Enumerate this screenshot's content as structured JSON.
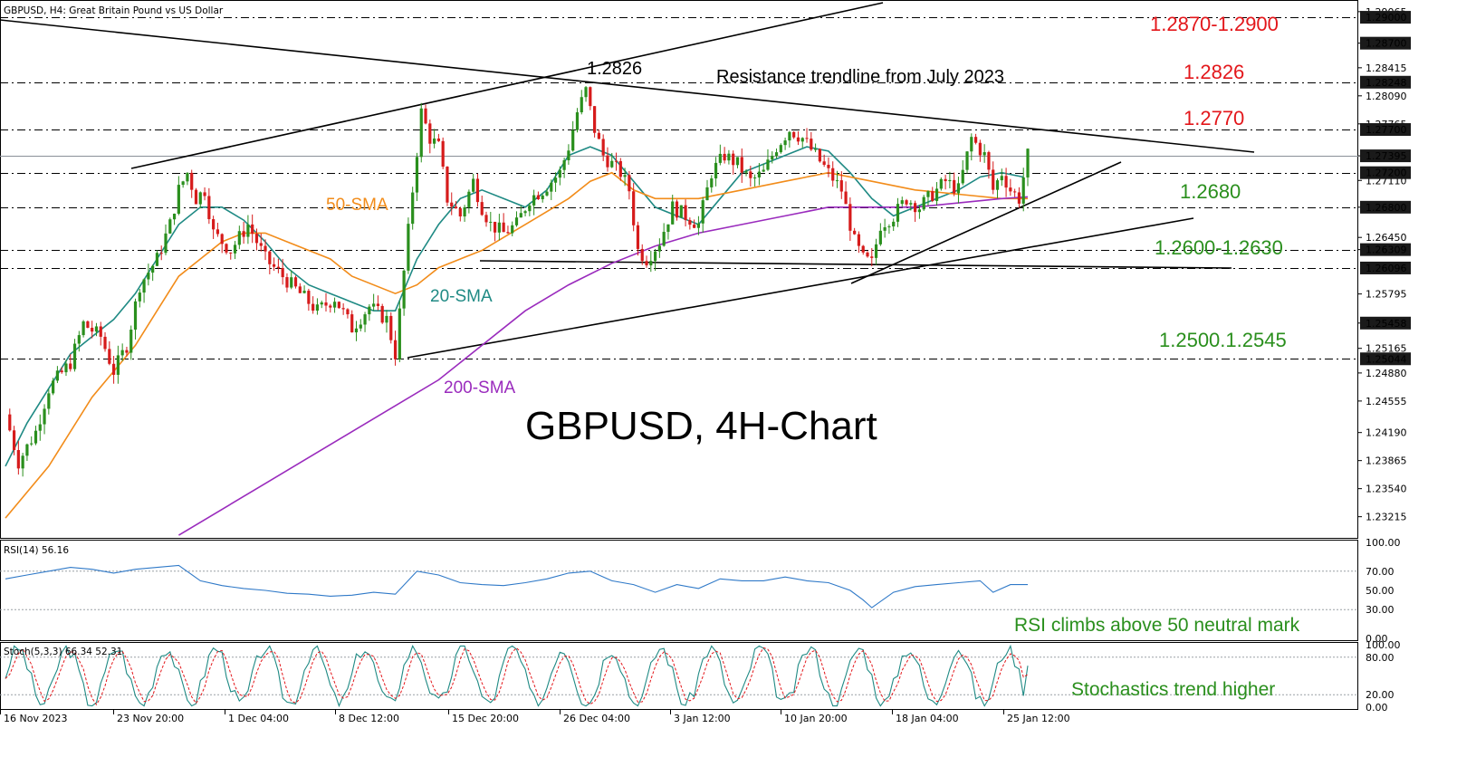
{
  "chart_data": {
    "type": "candlestick",
    "title": "GBPUSD, 4H-Chart",
    "header": "GBPUSD, H4:  Great Britain Pound vs US Dollar",
    "ylim": [
      1.2297,
      1.292
    ],
    "price_ticks": [
      "1.29065",
      "1.28700",
      "1.28415",
      "1.28090",
      "1.27765",
      "1.27395",
      "1.27110",
      "1.26800",
      "1.26450",
      "1.26309",
      "1.25795",
      "1.25458",
      "1.25165",
      "1.24880",
      "1.24555",
      "1.24190",
      "1.23865",
      "1.23540",
      "1.23215"
    ],
    "marked_levels": [
      {
        "value": 1.29,
        "label": "1.29000",
        "style": "dash",
        "highlight": true
      },
      {
        "value": 1.287,
        "label": "1.28700",
        "style": "none",
        "highlight": true
      },
      {
        "value": 1.28248,
        "label": "1.28248",
        "style": "dash",
        "highlight": true
      },
      {
        "value": 1.277,
        "label": "1.27700",
        "style": "dash",
        "highlight": true
      },
      {
        "value": 1.27395,
        "label": "1.27395",
        "style": "current",
        "highlight": true
      },
      {
        "value": 1.272,
        "label": "1.27200",
        "style": "dash",
        "highlight": true
      },
      {
        "value": 1.268,
        "label": "1.26800",
        "style": "dash",
        "highlight": true
      },
      {
        "value": 1.26309,
        "label": "1.26309",
        "style": "dash",
        "highlight": true
      },
      {
        "value": 1.26096,
        "label": "1.26096",
        "style": "dash",
        "highlight": true
      },
      {
        "value": 1.25458,
        "label": "1.25458",
        "style": "none",
        "highlight": true
      },
      {
        "value": 1.25044,
        "label": "1.25044",
        "style": "dash",
        "highlight": true
      }
    ],
    "x_ticks": [
      "16 Nov 2023",
      "23 Nov 20:00",
      "1 Dec 04:00",
      "8 Dec 12:00",
      "15 Dec 20:00",
      "26 Dec 04:00",
      "3 Jan 12:00",
      "10 Jan 20:00",
      "18 Jan 04:00",
      "25 Jan 12:00"
    ],
    "price_path": [
      [
        0,
        1.244
      ],
      [
        3,
        1.2385
      ],
      [
        7,
        1.242
      ],
      [
        10,
        1.247
      ],
      [
        15,
        1.25
      ],
      [
        18,
        1.2545
      ],
      [
        22,
        1.253
      ],
      [
        25,
        1.249
      ],
      [
        28,
        1.252
      ],
      [
        31,
        1.259
      ],
      [
        35,
        1.262
      ],
      [
        38,
        1.266
      ],
      [
        40,
        1.27
      ],
      [
        42,
        1.272
      ],
      [
        44,
        1.269
      ],
      [
        46,
        1.27
      ],
      [
        48,
        1.265
      ],
      [
        52,
        1.263
      ],
      [
        56,
        1.266
      ],
      [
        60,
        1.262
      ],
      [
        64,
        1.26
      ],
      [
        68,
        1.258
      ],
      [
        72,
        1.256
      ],
      [
        76,
        1.2575
      ],
      [
        80,
        1.254
      ],
      [
        84,
        1.2565
      ],
      [
        88,
        1.255
      ],
      [
        90,
        1.251
      ],
      [
        92,
        1.2605
      ],
      [
        94,
        1.27
      ],
      [
        96,
        1.279
      ],
      [
        98,
        1.276
      ],
      [
        100,
        1.275
      ],
      [
        102,
        1.269
      ],
      [
        105,
        1.267
      ],
      [
        108,
        1.271
      ],
      [
        110,
        1.268
      ],
      [
        112,
        1.266
      ],
      [
        115,
        1.265
      ],
      [
        118,
        1.266
      ],
      [
        121,
        1.269
      ],
      [
        124,
        1.27
      ],
      [
        128,
        1.272
      ],
      [
        130,
        1.275
      ],
      [
        132,
        1.279
      ],
      [
        134,
        1.2815
      ],
      [
        136,
        1.277
      ],
      [
        138,
        1.274
      ],
      [
        140,
        1.273
      ],
      [
        142,
        1.272
      ],
      [
        144,
        1.27
      ],
      [
        146,
        1.263
      ],
      [
        148,
        1.262
      ],
      [
        151,
        1.264
      ],
      [
        154,
        1.268
      ],
      [
        157,
        1.267
      ],
      [
        160,
        1.266
      ],
      [
        163,
        1.272
      ],
      [
        166,
        1.274
      ],
      [
        169,
        1.273
      ],
      [
        172,
        1.271
      ],
      [
        175,
        1.272
      ],
      [
        178,
        1.275
      ],
      [
        181,
        1.277
      ],
      [
        184,
        1.276
      ],
      [
        187,
        1.274
      ],
      [
        190,
        1.272
      ],
      [
        193,
        1.27
      ],
      [
        196,
        1.264
      ],
      [
        198,
        1.262
      ],
      [
        200,
        1.2615
      ],
      [
        202,
        1.266
      ],
      [
        205,
        1.267
      ],
      [
        208,
        1.269
      ],
      [
        211,
        1.268
      ],
      [
        214,
        1.2695
      ],
      [
        217,
        1.271
      ],
      [
        220,
        1.27
      ],
      [
        223,
        1.276
      ],
      [
        226,
        1.274
      ],
      [
        228,
        1.27
      ],
      [
        230,
        1.272
      ],
      [
        232,
        1.27
      ],
      [
        234,
        1.269
      ],
      [
        236,
        1.274
      ]
    ],
    "series": [
      {
        "name": "20-SMA",
        "color": "#1f8a84",
        "values": [
          [
            0,
            1.238
          ],
          [
            5,
            1.243
          ],
          [
            10,
            1.247
          ],
          [
            15,
            1.251
          ],
          [
            20,
            1.253
          ],
          [
            25,
            1.255
          ],
          [
            30,
            1.258
          ],
          [
            35,
            1.262
          ],
          [
            40,
            1.266
          ],
          [
            45,
            1.268
          ],
          [
            50,
            1.268
          ],
          [
            55,
            1.2665
          ],
          [
            60,
            1.264
          ],
          [
            65,
            1.261
          ],
          [
            70,
            1.259
          ],
          [
            75,
            1.258
          ],
          [
            80,
            1.257
          ],
          [
            85,
            1.256
          ],
          [
            90,
            1.256
          ],
          [
            95,
            1.262
          ],
          [
            100,
            1.266
          ],
          [
            105,
            1.269
          ],
          [
            110,
            1.27
          ],
          [
            115,
            1.269
          ],
          [
            120,
            1.268
          ],
          [
            125,
            1.27
          ],
          [
            130,
            1.274
          ],
          [
            135,
            1.275
          ],
          [
            140,
            1.274
          ],
          [
            145,
            1.271
          ],
          [
            150,
            1.268
          ],
          [
            155,
            1.267
          ],
          [
            160,
            1.266
          ],
          [
            165,
            1.269
          ],
          [
            170,
            1.272
          ],
          [
            175,
            1.273
          ],
          [
            180,
            1.274
          ],
          [
            185,
            1.275
          ],
          [
            190,
            1.2745
          ],
          [
            195,
            1.272
          ],
          [
            200,
            1.269
          ],
          [
            205,
            1.267
          ],
          [
            210,
            1.268
          ],
          [
            215,
            1.269
          ],
          [
            220,
            1.27
          ],
          [
            225,
            1.2715
          ],
          [
            230,
            1.272
          ],
          [
            235,
            1.2715
          ]
        ]
      },
      {
        "name": "50-SMA",
        "color": "#f28c1a",
        "values": [
          [
            0,
            1.232
          ],
          [
            10,
            1.238
          ],
          [
            20,
            1.246
          ],
          [
            30,
            1.252
          ],
          [
            35,
            1.256
          ],
          [
            40,
            1.26
          ],
          [
            45,
            1.262
          ],
          [
            50,
            1.264
          ],
          [
            55,
            1.265
          ],
          [
            60,
            1.265
          ],
          [
            65,
            1.264
          ],
          [
            70,
            1.263
          ],
          [
            75,
            1.262
          ],
          [
            80,
            1.26
          ],
          [
            90,
            1.258
          ],
          [
            95,
            1.259
          ],
          [
            100,
            1.261
          ],
          [
            110,
            1.263
          ],
          [
            120,
            1.266
          ],
          [
            130,
            1.269
          ],
          [
            135,
            1.271
          ],
          [
            140,
            1.272
          ],
          [
            145,
            1.27
          ],
          [
            150,
            1.269
          ],
          [
            160,
            1.269
          ],
          [
            170,
            1.27
          ],
          [
            180,
            1.271
          ],
          [
            190,
            1.272
          ],
          [
            200,
            1.271
          ],
          [
            210,
            1.27
          ],
          [
            220,
            1.2695
          ],
          [
            230,
            1.269
          ],
          [
            236,
            1.269
          ]
        ]
      },
      {
        "name": "200-SMA",
        "color": "#9a2bbd",
        "values": [
          [
            40,
            1.23
          ],
          [
            60,
            1.236
          ],
          [
            80,
            1.242
          ],
          [
            90,
            1.245
          ],
          [
            100,
            1.248
          ],
          [
            110,
            1.252
          ],
          [
            120,
            1.256
          ],
          [
            130,
            1.259
          ],
          [
            140,
            1.2615
          ],
          [
            150,
            1.2635
          ],
          [
            160,
            1.265
          ],
          [
            170,
            1.266
          ],
          [
            180,
            1.267
          ],
          [
            190,
            1.268
          ],
          [
            200,
            1.268
          ],
          [
            210,
            1.268
          ],
          [
            220,
            1.2685
          ],
          [
            230,
            1.269
          ],
          [
            236,
            1.2692
          ]
        ]
      }
    ],
    "rsi": {
      "label": "RSI(14) 56.16",
      "ticks": [
        "100.00",
        "70.00",
        "50.00",
        "30.00",
        "0.00"
      ],
      "values": [
        [
          0,
          62
        ],
        [
          5,
          66
        ],
        [
          10,
          70
        ],
        [
          15,
          74
        ],
        [
          20,
          72
        ],
        [
          25,
          68
        ],
        [
          30,
          72
        ],
        [
          35,
          74
        ],
        [
          40,
          76
        ],
        [
          45,
          60
        ],
        [
          50,
          55
        ],
        [
          55,
          52
        ],
        [
          60,
          50
        ],
        [
          65,
          47
        ],
        [
          70,
          46
        ],
        [
          75,
          44
        ],
        [
          80,
          45
        ],
        [
          85,
          48
        ],
        [
          90,
          46
        ],
        [
          95,
          70
        ],
        [
          100,
          66
        ],
        [
          105,
          58
        ],
        [
          110,
          56
        ],
        [
          115,
          55
        ],
        [
          120,
          58
        ],
        [
          125,
          62
        ],
        [
          130,
          68
        ],
        [
          135,
          70
        ],
        [
          140,
          60
        ],
        [
          145,
          56
        ],
        [
          150,
          48
        ],
        [
          155,
          56
        ],
        [
          160,
          52
        ],
        [
          165,
          62
        ],
        [
          170,
          60
        ],
        [
          175,
          60
        ],
        [
          180,
          64
        ],
        [
          185,
          60
        ],
        [
          190,
          58
        ],
        [
          195,
          50
        ],
        [
          198,
          40
        ],
        [
          200,
          32
        ],
        [
          205,
          48
        ],
        [
          210,
          54
        ],
        [
          215,
          56
        ],
        [
          220,
          58
        ],
        [
          225,
          60
        ],
        [
          228,
          48
        ],
        [
          232,
          56
        ],
        [
          236,
          56
        ]
      ],
      "note": "RSI climbs above 50 neutral mark"
    },
    "stoch": {
      "label": "Stoch(5,3,3) 66.34 52.31",
      "ticks": [
        "100.00",
        "80.00",
        "20.00",
        "0.00"
      ],
      "k": 66.34,
      "d": 52.31,
      "note": "Stochastics trend higher"
    }
  },
  "annotations": {
    "res_1": "1.2870-1.2900",
    "res_2": "1.2826",
    "res_3": "1.2770",
    "sup_1": "1.2680",
    "sup_2": "1.2600-1.2630",
    "sup_3": "1.2500.1.2545",
    "peak": "1.2826",
    "trendline_note": "Resistance trendline from July 2023",
    "sma20": "20-SMA",
    "sma50": "50-SMA",
    "sma200": "200-SMA"
  },
  "colors": {
    "red": "#e3171b",
    "green": "#2a8f1d",
    "highlight": "#1a1a1a",
    "bull": "#2a8f1d",
    "bear": "#d61b1b",
    "rsi": "#2f79c8"
  }
}
